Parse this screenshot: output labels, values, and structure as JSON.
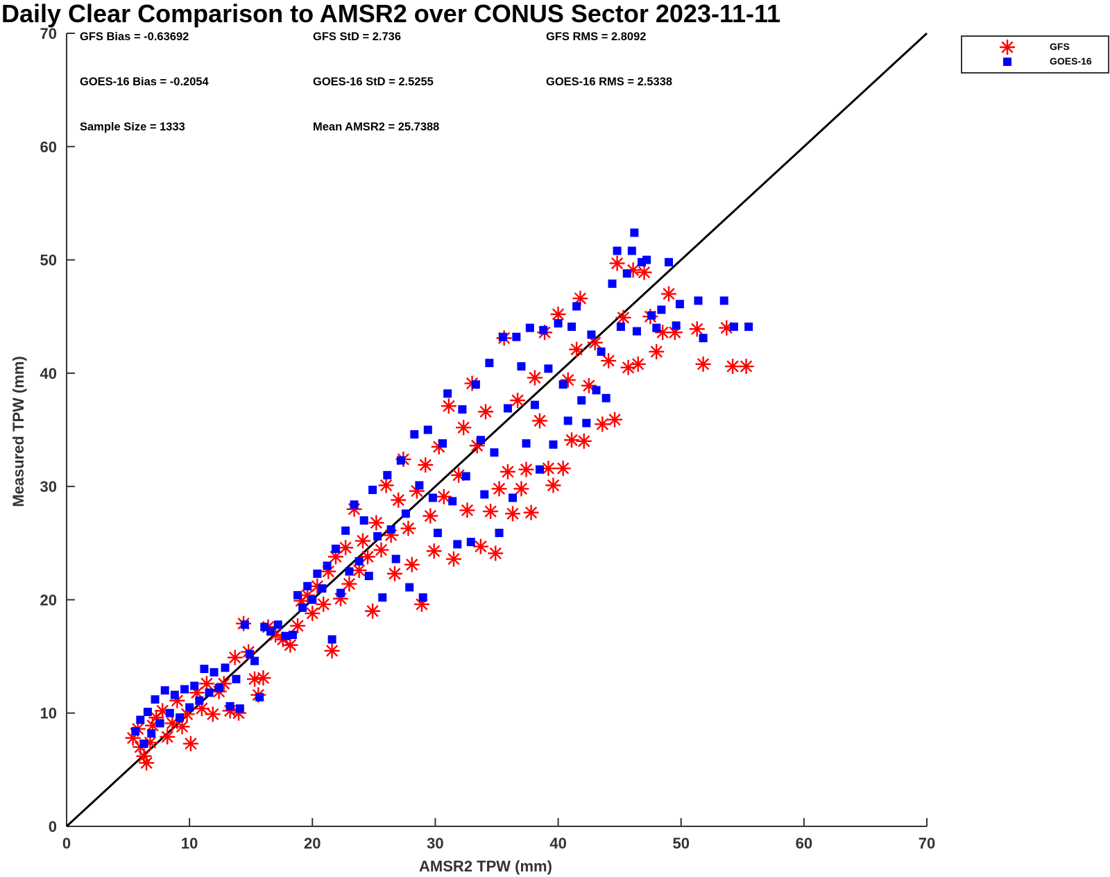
{
  "chart_data": {
    "type": "scatter",
    "title": "Daily Clear Comparison to AMSR2 over CONUS Sector 2023-11-11",
    "xlabel": "AMSR2 TPW (mm)",
    "ylabel": "Measured TPW (mm)",
    "xlim": [
      0,
      70
    ],
    "ylim": [
      0,
      70
    ],
    "xticks": [
      "0",
      "10",
      "20",
      "30",
      "40",
      "50",
      "60",
      "70"
    ],
    "yticks": [
      "0",
      "10",
      "20",
      "30",
      "40",
      "50",
      "60",
      "70"
    ],
    "grid": false,
    "legend_position": "outside-top-right",
    "reference_line": {
      "name": "1:1 line",
      "x": [
        0,
        70
      ],
      "y": [
        0,
        70
      ],
      "color": "#000000"
    },
    "stats": [
      "GFS Bias = -0.63692",
      "GFS StD = 2.736",
      "GFS RMS = 2.8092",
      "GOES-16 Bias = -0.2054",
      "GOES-16 StD = 2.5255",
      "GOES-16 RMS = 2.5338",
      "Sample Size = 1333",
      "Mean AMSR2 = 25.7388"
    ],
    "series": [
      {
        "name": "GFS",
        "marker": "asterisk",
        "color": "#ff0000",
        "points": [
          [
            5.4,
            7.8
          ],
          [
            5.8,
            8.6
          ],
          [
            6.0,
            7.0
          ],
          [
            6.3,
            6.2
          ],
          [
            6.5,
            5.6
          ],
          [
            6.8,
            7.4
          ],
          [
            7.0,
            8.9
          ],
          [
            7.3,
            9.6
          ],
          [
            7.8,
            10.2
          ],
          [
            8.2,
            7.9
          ],
          [
            8.6,
            9.1
          ],
          [
            9.0,
            11.1
          ],
          [
            9.4,
            8.8
          ],
          [
            9.8,
            9.9
          ],
          [
            10.1,
            7.3
          ],
          [
            10.6,
            11.8
          ],
          [
            11.0,
            10.4
          ],
          [
            11.4,
            12.6
          ],
          [
            11.9,
            9.9
          ],
          [
            12.4,
            11.9
          ],
          [
            12.8,
            12.6
          ],
          [
            13.3,
            10.2
          ],
          [
            13.7,
            14.9
          ],
          [
            14.0,
            10.0
          ],
          [
            14.4,
            17.9
          ],
          [
            14.8,
            15.4
          ],
          [
            15.3,
            13.0
          ],
          [
            15.6,
            11.6
          ],
          [
            16.0,
            13.1
          ],
          [
            16.4,
            17.6
          ],
          [
            17.0,
            16.9
          ],
          [
            17.6,
            16.5
          ],
          [
            18.2,
            16.0
          ],
          [
            18.8,
            17.7
          ],
          [
            19.1,
            19.9
          ],
          [
            19.6,
            20.4
          ],
          [
            20.0,
            18.8
          ],
          [
            20.4,
            21.2
          ],
          [
            20.9,
            19.6
          ],
          [
            21.3,
            22.5
          ],
          [
            21.6,
            15.5
          ],
          [
            21.9,
            23.8
          ],
          [
            22.3,
            20.1
          ],
          [
            22.7,
            24.6
          ],
          [
            23.0,
            21.4
          ],
          [
            23.4,
            28.0
          ],
          [
            23.8,
            22.6
          ],
          [
            24.1,
            25.2
          ],
          [
            24.5,
            23.8
          ],
          [
            24.9,
            19.0
          ],
          [
            25.2,
            26.8
          ],
          [
            25.6,
            24.4
          ],
          [
            26.0,
            30.1
          ],
          [
            26.4,
            25.7
          ],
          [
            26.7,
            22.3
          ],
          [
            27.0,
            28.8
          ],
          [
            27.4,
            32.4
          ],
          [
            27.8,
            26.3
          ],
          [
            28.1,
            23.1
          ],
          [
            28.5,
            29.6
          ],
          [
            28.9,
            19.6
          ],
          [
            29.2,
            31.9
          ],
          [
            29.6,
            27.4
          ],
          [
            29.9,
            24.3
          ],
          [
            30.3,
            33.5
          ],
          [
            30.7,
            29.1
          ],
          [
            31.1,
            37.1
          ],
          [
            31.5,
            23.6
          ],
          [
            31.9,
            31.0
          ],
          [
            32.3,
            35.2
          ],
          [
            32.6,
            27.9
          ],
          [
            33.0,
            39.1
          ],
          [
            33.4,
            33.6
          ],
          [
            33.7,
            24.7
          ],
          [
            34.1,
            36.6
          ],
          [
            34.5,
            27.8
          ],
          [
            34.9,
            24.1
          ],
          [
            35.2,
            29.8
          ],
          [
            35.6,
            43.1
          ],
          [
            35.9,
            31.3
          ],
          [
            36.3,
            27.6
          ],
          [
            36.7,
            37.6
          ],
          [
            37.0,
            29.8
          ],
          [
            37.4,
            31.5
          ],
          [
            37.8,
            27.7
          ],
          [
            38.1,
            39.6
          ],
          [
            38.5,
            35.8
          ],
          [
            38.9,
            43.6
          ],
          [
            39.2,
            31.6
          ],
          [
            39.6,
            30.1
          ],
          [
            40.0,
            45.2
          ],
          [
            40.4,
            31.6
          ],
          [
            40.8,
            39.4
          ],
          [
            41.1,
            34.1
          ],
          [
            41.5,
            42.1
          ],
          [
            41.8,
            46.6
          ],
          [
            42.1,
            34.0
          ],
          [
            42.5,
            38.9
          ],
          [
            43.0,
            42.7
          ],
          [
            43.6,
            35.5
          ],
          [
            44.1,
            41.1
          ],
          [
            44.6,
            35.9
          ],
          [
            44.8,
            49.7
          ],
          [
            45.3,
            44.9
          ],
          [
            45.7,
            40.5
          ],
          [
            46.1,
            49.1
          ],
          [
            46.5,
            40.8
          ],
          [
            47.0,
            48.9
          ],
          [
            47.5,
            45.0
          ],
          [
            48.0,
            41.9
          ],
          [
            48.5,
            43.6
          ],
          [
            49.0,
            47.0
          ],
          [
            49.5,
            43.6
          ],
          [
            51.3,
            43.9
          ],
          [
            51.8,
            40.8
          ],
          [
            53.7,
            44.0
          ],
          [
            54.2,
            40.6
          ],
          [
            55.3,
            40.6
          ]
        ]
      },
      {
        "name": "GOES-16",
        "marker": "square",
        "color": "#0000ff",
        "points": [
          [
            5.6,
            8.4
          ],
          [
            6.0,
            9.4
          ],
          [
            6.3,
            7.3
          ],
          [
            6.6,
            10.1
          ],
          [
            6.9,
            8.2
          ],
          [
            7.2,
            11.2
          ],
          [
            7.6,
            9.1
          ],
          [
            8.0,
            12.0
          ],
          [
            8.4,
            10.0
          ],
          [
            8.8,
            11.6
          ],
          [
            9.2,
            9.6
          ],
          [
            9.6,
            12.1
          ],
          [
            10.0,
            10.5
          ],
          [
            10.4,
            12.4
          ],
          [
            10.8,
            11.1
          ],
          [
            11.2,
            13.9
          ],
          [
            11.6,
            11.8
          ],
          [
            12.0,
            13.6
          ],
          [
            12.4,
            12.2
          ],
          [
            12.9,
            14.0
          ],
          [
            13.3,
            10.6
          ],
          [
            13.8,
            13.0
          ],
          [
            14.1,
            10.4
          ],
          [
            14.5,
            17.8
          ],
          [
            14.9,
            15.2
          ],
          [
            15.3,
            14.6
          ],
          [
            15.7,
            11.4
          ],
          [
            16.1,
            17.6
          ],
          [
            16.6,
            17.2
          ],
          [
            17.2,
            17.8
          ],
          [
            17.8,
            16.8
          ],
          [
            18.4,
            16.9
          ],
          [
            18.8,
            20.4
          ],
          [
            19.2,
            19.3
          ],
          [
            19.6,
            21.2
          ],
          [
            20.0,
            20.0
          ],
          [
            20.4,
            22.3
          ],
          [
            20.8,
            21.0
          ],
          [
            21.2,
            23.0
          ],
          [
            21.6,
            16.5
          ],
          [
            21.9,
            24.5
          ],
          [
            22.3,
            20.6
          ],
          [
            22.7,
            26.1
          ],
          [
            23.0,
            22.5
          ],
          [
            23.4,
            28.4
          ],
          [
            23.8,
            23.4
          ],
          [
            24.2,
            27.0
          ],
          [
            24.6,
            22.1
          ],
          [
            24.9,
            29.7
          ],
          [
            25.3,
            25.6
          ],
          [
            25.7,
            20.2
          ],
          [
            26.1,
            31.0
          ],
          [
            26.4,
            26.2
          ],
          [
            26.8,
            23.6
          ],
          [
            27.2,
            32.3
          ],
          [
            27.6,
            27.6
          ],
          [
            27.9,
            21.1
          ],
          [
            28.3,
            34.6
          ],
          [
            28.7,
            30.1
          ],
          [
            29.0,
            20.2
          ],
          [
            29.4,
            35.0
          ],
          [
            29.8,
            29.0
          ],
          [
            30.2,
            25.9
          ],
          [
            30.6,
            33.8
          ],
          [
            31.0,
            38.2
          ],
          [
            31.4,
            28.7
          ],
          [
            31.8,
            24.9
          ],
          [
            32.2,
            36.8
          ],
          [
            32.5,
            30.9
          ],
          [
            32.9,
            25.1
          ],
          [
            33.3,
            39.0
          ],
          [
            33.7,
            34.1
          ],
          [
            34.0,
            29.3
          ],
          [
            34.4,
            40.9
          ],
          [
            34.8,
            33.0
          ],
          [
            35.2,
            25.9
          ],
          [
            35.5,
            43.2
          ],
          [
            35.9,
            36.9
          ],
          [
            36.3,
            29.0
          ],
          [
            36.6,
            43.2
          ],
          [
            37.0,
            40.6
          ],
          [
            37.4,
            33.8
          ],
          [
            37.7,
            44.0
          ],
          [
            38.1,
            37.2
          ],
          [
            38.5,
            31.5
          ],
          [
            38.8,
            43.8
          ],
          [
            39.2,
            40.4
          ],
          [
            39.6,
            33.7
          ],
          [
            40.0,
            44.4
          ],
          [
            40.4,
            39.0
          ],
          [
            40.8,
            35.8
          ],
          [
            41.1,
            44.1
          ],
          [
            41.5,
            45.9
          ],
          [
            41.9,
            37.6
          ],
          [
            42.3,
            35.6
          ],
          [
            42.7,
            43.4
          ],
          [
            43.1,
            38.5
          ],
          [
            43.5,
            41.9
          ],
          [
            43.9,
            37.8
          ],
          [
            44.4,
            47.9
          ],
          [
            44.8,
            50.8
          ],
          [
            45.1,
            44.1
          ],
          [
            45.6,
            48.8
          ],
          [
            46.0,
            50.8
          ],
          [
            46.2,
            52.4
          ],
          [
            46.4,
            43.7
          ],
          [
            46.8,
            49.8
          ],
          [
            47.2,
            50.0
          ],
          [
            47.6,
            45.1
          ],
          [
            48.0,
            44.0
          ],
          [
            48.4,
            45.6
          ],
          [
            49.0,
            49.8
          ],
          [
            49.6,
            44.2
          ],
          [
            49.9,
            46.1
          ],
          [
            51.4,
            46.4
          ],
          [
            51.8,
            43.1
          ],
          [
            53.5,
            46.4
          ],
          [
            54.3,
            44.1
          ],
          [
            55.5,
            44.1
          ]
        ]
      }
    ]
  }
}
